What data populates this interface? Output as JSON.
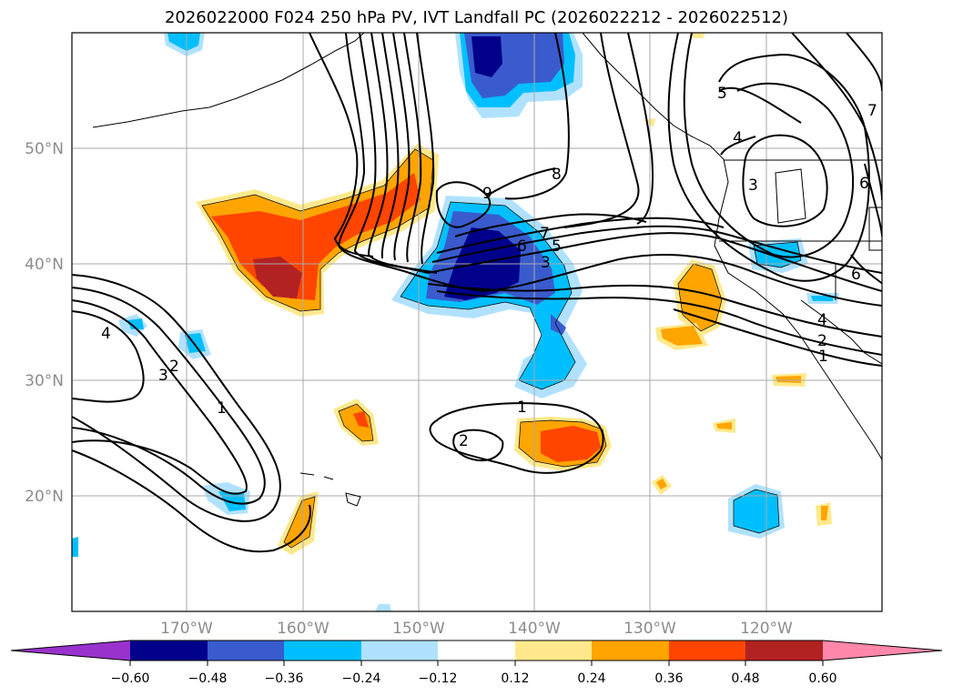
{
  "title": "2026022000 F024 250 hPa PV, IVT Landfall PC (2026022212 - 2026022512)",
  "lat_labels": [
    "50°N",
    "40°N",
    "30°N",
    "20°N"
  ],
  "lon_labels": [
    "170°W",
    "160°W",
    "150°W",
    "140°W",
    "130°W",
    "120°W"
  ],
  "colorbar": {
    "ticks": [
      "−0.60",
      "−0.48",
      "−0.36",
      "−0.24",
      "−0.12",
      "0.12",
      "0.24",
      "0.36",
      "0.48",
      "0.60"
    ],
    "colors": [
      "#9932cc",
      "#00008b",
      "#3a5bcd",
      "#00bfff",
      "#b0e2ff",
      "#ffffff",
      "#ffe98c",
      "#ffa500",
      "#ff4500",
      "#b22222",
      "#ff88aa"
    ]
  },
  "contour_labels": [
    "4",
    "3",
    "2",
    "1",
    "1",
    "2",
    "9",
    "8",
    "7",
    "6",
    "5",
    "3",
    "5",
    "4",
    "3",
    "6",
    "6",
    "4",
    "2",
    "1",
    "7"
  ],
  "colors": {
    "neg_light": "#b0e2ff",
    "neg_mid": "#00bfff",
    "neg_strong": "#3a5bcd",
    "neg_max": "#00008b",
    "pos_light": "#ffe98c",
    "pos_mid": "#ffa500",
    "pos_strong": "#ff4500",
    "pos_max": "#b22222"
  }
}
